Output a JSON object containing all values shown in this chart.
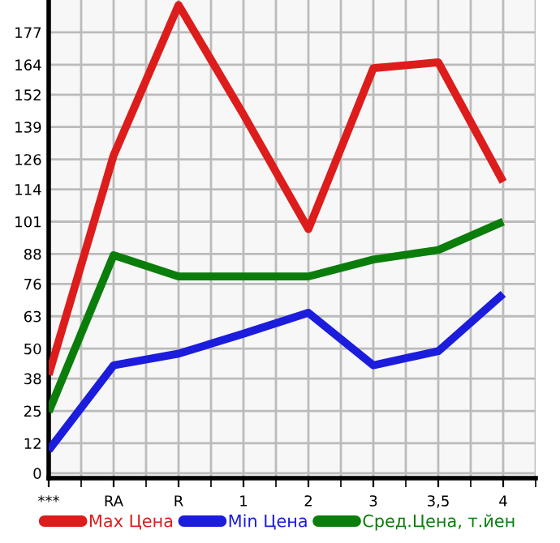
{
  "chart_data": {
    "type": "line",
    "categories": [
      "***",
      "RA",
      "R",
      "1",
      "2",
      "3",
      "3,5",
      "4"
    ],
    "series": [
      {
        "name": "Max Цена",
        "color": "#dd1c1c",
        "values": [
          39.5,
          127.6,
          188,
          144,
          98,
          162.6,
          165,
          117
        ]
      },
      {
        "name": "Min Цена",
        "color": "#1c1cdd",
        "values": [
          9.2,
          43.3,
          48,
          56,
          64.4,
          43.3,
          49,
          72
        ]
      },
      {
        "name": "Сред.Цена, т.йен",
        "color": "#0b7d0b",
        "values": [
          24.6,
          87.5,
          79,
          79,
          79,
          85.8,
          89.6,
          101
        ]
      }
    ],
    "ylim": [
      -2,
      190
    ],
    "yticks": [
      0,
      12,
      25,
      38,
      50,
      63,
      76,
      88,
      101,
      114,
      126,
      139,
      152,
      164,
      177
    ],
    "grid": true,
    "legend": "bottom",
    "marker": "none",
    "line_style": "solid"
  }
}
